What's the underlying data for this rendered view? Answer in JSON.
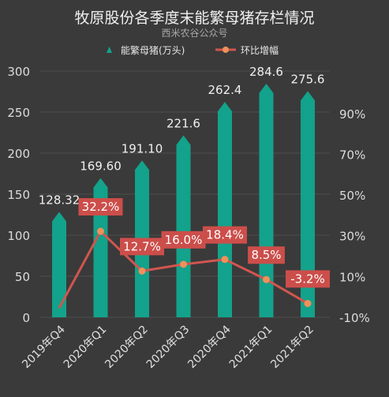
{
  "title": "牧原股份各季度末能繁母猪存栏情况",
  "subtitle": "西米农谷公众号",
  "colors": {
    "bar": "#13a28b",
    "line": "#d0564f",
    "marker": "#f0905a",
    "label_box": "#cc4e4a",
    "grid": "#4d4d4d"
  },
  "chart_data": {
    "type": "bar",
    "categories": [
      "2019年Q4",
      "2020年Q1",
      "2020年Q2",
      "2020年Q3",
      "2020年Q4",
      "2021年Q1",
      "2021年Q2"
    ],
    "series": [
      {
        "name": "能繁母猪(万头)",
        "type": "bar",
        "axis": "left",
        "values": [
          128.32,
          169.6,
          191.1,
          221.6,
          262.4,
          284.6,
          275.6
        ],
        "labels": [
          "128.32",
          "169.60",
          "191.10",
          "221.6",
          "262.4",
          "284.6",
          "275.6"
        ]
      },
      {
        "name": "环比增幅",
        "type": "line",
        "axis": "right",
        "values": [
          null,
          32.2,
          12.7,
          16.0,
          18.4,
          8.5,
          -3.2
        ],
        "labels": [
          "",
          "32.2%",
          "12.7%",
          "16.0%",
          "18.4%",
          "8.5%",
          "-3.2%"
        ]
      }
    ],
    "y_left": {
      "min": 0,
      "max": 300,
      "ticks": [
        0,
        50,
        100,
        150,
        200,
        250,
        300
      ]
    },
    "y_right": {
      "min": -10,
      "max": 100,
      "ticks": [
        "-10%",
        "10%",
        "30%",
        "50%",
        "70%",
        "90%"
      ],
      "tick_values": [
        -10,
        10,
        30,
        50,
        70,
        90
      ]
    },
    "legend_position": "top",
    "grid": true
  }
}
